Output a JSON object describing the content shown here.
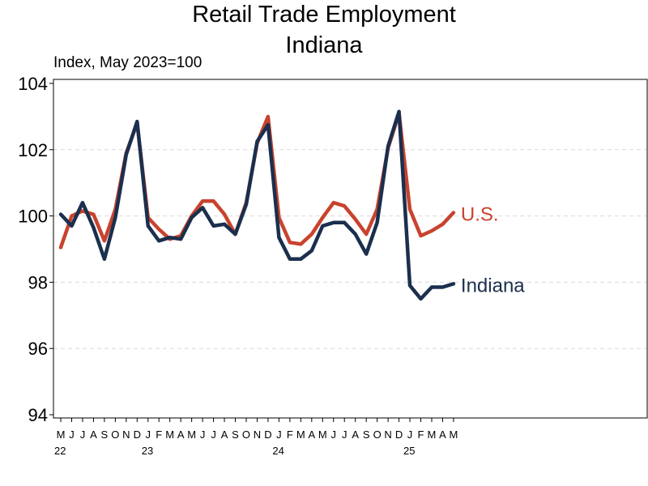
{
  "chart_data": {
    "type": "line",
    "title": "Retail Trade Employment",
    "subtitle": "Indiana",
    "ylabel": "Index, May 2023=100",
    "ylim": [
      94,
      104
    ],
    "yticks": [
      94,
      96,
      98,
      100,
      102,
      104
    ],
    "grid": "horizontal dashed",
    "x": [
      "May 2022",
      "Jun 2022",
      "Jul 2022",
      "Aug 2022",
      "Sep 2022",
      "Oct 2022",
      "Nov 2022",
      "Dec 2022",
      "Jan 2023",
      "Feb 2023",
      "Mar 2023",
      "Apr 2023",
      "May 2023",
      "Jun 2023",
      "Jul 2023",
      "Aug 2023",
      "Sep 2023",
      "Oct 2023",
      "Nov 2023",
      "Dec 2023",
      "Jan 2024",
      "Feb 2024",
      "Mar 2024",
      "Apr 2024",
      "May 2024",
      "Jun 2024",
      "Jul 2024",
      "Aug 2024",
      "Sep 2024",
      "Oct 2024",
      "Nov 2024",
      "Dec 2024",
      "Jan 2025",
      "Feb 2025",
      "Mar 2025",
      "Apr 2025",
      "May 2025"
    ],
    "month_tick_labels": [
      "M",
      "J",
      "J",
      "A",
      "S",
      "O",
      "N",
      "D",
      "J",
      "F",
      "M",
      "A",
      "M",
      "J",
      "J",
      "A",
      "S",
      "O",
      "N",
      "D",
      "J",
      "F",
      "M",
      "A",
      "M",
      "J",
      "J",
      "A",
      "S",
      "O",
      "N",
      "D",
      "J",
      "F",
      "M",
      "A",
      "M"
    ],
    "year_labels": [
      {
        "label": "22",
        "index": 0
      },
      {
        "label": "23",
        "index": 8
      },
      {
        "label": "24",
        "index": 20
      },
      {
        "label": "25",
        "index": 32
      }
    ],
    "series": [
      {
        "name": "U.S.",
        "color": "#c8432e",
        "values": [
          99.05,
          100.0,
          100.15,
          100.05,
          99.25,
          100.2,
          101.9,
          102.8,
          99.95,
          99.6,
          99.3,
          99.4,
          100.0,
          100.45,
          100.45,
          100.05,
          99.45,
          100.4,
          102.2,
          103.0,
          99.95,
          99.2,
          99.15,
          99.45,
          99.95,
          100.4,
          100.3,
          99.9,
          99.45,
          100.2,
          102.05,
          103.1,
          100.2,
          99.4,
          99.55,
          99.75,
          100.1
        ]
      },
      {
        "name": "Indiana",
        "color": "#1b2f4e",
        "values": [
          100.05,
          99.7,
          100.4,
          99.65,
          98.7,
          99.95,
          101.85,
          102.85,
          99.7,
          99.25,
          99.35,
          99.3,
          99.95,
          100.25,
          99.7,
          99.75,
          99.45,
          100.35,
          102.25,
          102.75,
          99.35,
          98.7,
          98.7,
          98.95,
          99.7,
          99.8,
          99.8,
          99.45,
          98.85,
          99.8,
          102.1,
          103.15,
          97.9,
          97.5,
          97.85,
          97.85,
          97.95
        ]
      }
    ]
  }
}
